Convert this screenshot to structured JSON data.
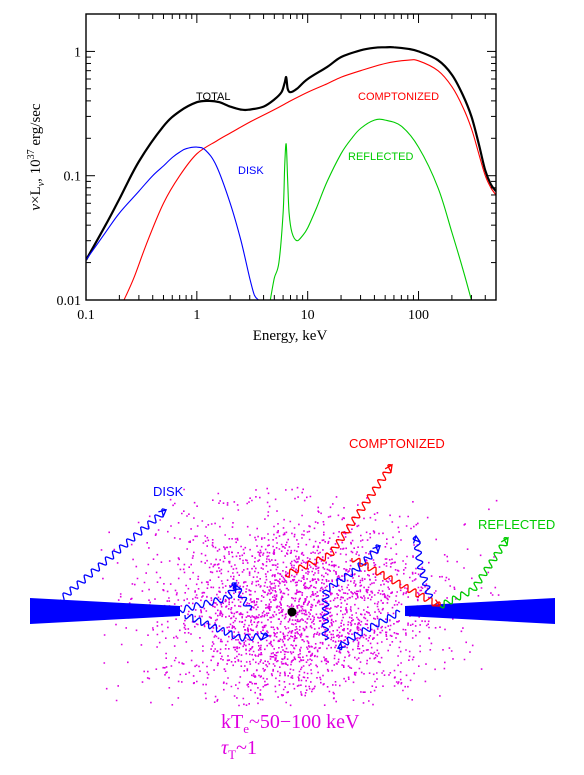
{
  "chart_data": {
    "type": "line",
    "xscale": "log",
    "yscale": "log",
    "xlim": [
      0.1,
      500
    ],
    "ylim": [
      0.01,
      2
    ],
    "xlabel": "Energy, keV",
    "ylabel": {
      "nu": "ν",
      "times": "×L",
      "nu_sub": "ν",
      "units_pre": ", 10",
      "units_exp": "37",
      "units_post": " erg/sec"
    },
    "x_ticks": [
      {
        "value": 0.1,
        "label": "0.1"
      },
      {
        "value": 1,
        "label": "1"
      },
      {
        "value": 10,
        "label": "10"
      },
      {
        "value": 100,
        "label": "100"
      }
    ],
    "y_ticks": [
      {
        "value": 0.01,
        "label": "0.01"
      },
      {
        "value": 0.1,
        "label": "0.1"
      },
      {
        "value": 1,
        "label": "1"
      }
    ],
    "grid": false,
    "series": [
      {
        "name": "TOTAL",
        "color": "#000000",
        "x": [
          0.1,
          0.15,
          0.2,
          0.3,
          0.5,
          0.7,
          1.0,
          1.3,
          1.6,
          2.0,
          2.5,
          3.0,
          4.0,
          5.0,
          5.8,
          6.2,
          6.4,
          6.6,
          7.0,
          8.0,
          10,
          15,
          20,
          30,
          40,
          50,
          60,
          80,
          100,
          150,
          200,
          250,
          300,
          350,
          400,
          450,
          500
        ],
        "y": [
          0.021,
          0.04,
          0.065,
          0.13,
          0.25,
          0.33,
          0.39,
          0.4,
          0.39,
          0.36,
          0.34,
          0.34,
          0.36,
          0.41,
          0.47,
          0.56,
          0.62,
          0.5,
          0.47,
          0.5,
          0.6,
          0.75,
          0.9,
          1.02,
          1.07,
          1.08,
          1.08,
          1.05,
          1.0,
          0.85,
          0.65,
          0.45,
          0.3,
          0.18,
          0.11,
          0.085,
          0.075
        ]
      },
      {
        "name": "COMPTONIZED",
        "color": "#ff0000",
        "x": [
          0.22,
          0.27,
          0.35,
          0.5,
          0.7,
          1.0,
          1.5,
          2.0,
          3.0,
          5.0,
          7.0,
          10,
          15,
          20,
          30,
          50,
          80,
          100,
          150,
          200,
          250,
          300,
          350,
          400,
          450,
          500
        ],
        "y": [
          0.01,
          0.015,
          0.028,
          0.06,
          0.1,
          0.15,
          0.19,
          0.22,
          0.27,
          0.34,
          0.4,
          0.47,
          0.55,
          0.62,
          0.7,
          0.8,
          0.85,
          0.84,
          0.7,
          0.52,
          0.36,
          0.24,
          0.15,
          0.1,
          0.08,
          0.07
        ]
      },
      {
        "name": "DISK",
        "color": "#0000ff",
        "x": [
          0.1,
          0.15,
          0.2,
          0.3,
          0.4,
          0.5,
          0.6,
          0.7,
          0.8,
          1.0,
          1.2,
          1.5,
          2.0,
          2.5,
          3.0,
          3.3,
          3.6
        ],
        "y": [
          0.021,
          0.035,
          0.05,
          0.075,
          0.1,
          0.12,
          0.14,
          0.155,
          0.165,
          0.17,
          0.16,
          0.12,
          0.06,
          0.03,
          0.015,
          0.011,
          0.01
        ]
      },
      {
        "name": "REFLECTED",
        "color": "#00cc00",
        "x": [
          4.6,
          5.0,
          5.5,
          6.0,
          6.2,
          6.4,
          6.6,
          6.8,
          7.2,
          8.0,
          9.0,
          10,
          12,
          15,
          20,
          25,
          30,
          40,
          50,
          70,
          100,
          150,
          200,
          250,
          300
        ],
        "y": [
          0.01,
          0.015,
          0.02,
          0.05,
          0.12,
          0.18,
          0.09,
          0.05,
          0.035,
          0.03,
          0.033,
          0.038,
          0.055,
          0.09,
          0.15,
          0.2,
          0.24,
          0.28,
          0.28,
          0.25,
          0.17,
          0.08,
          0.035,
          0.018,
          0.01
        ]
      }
    ]
  },
  "schematic": {
    "labels": {
      "comptonized": "COMPTONIZED",
      "disk": "DISK",
      "reflected": "REFLECTED"
    },
    "colors": {
      "cloud": "#e000e0",
      "disk": "#0000ff",
      "comptonized": "#ff0000",
      "reflected": "#00cc00"
    },
    "params": {
      "kte_main": "kT",
      "kte_sub": "e",
      "kte_value": "~50−100 keV",
      "tau_main": "τ",
      "tau_sub": "T",
      "tau_value": "~1"
    }
  }
}
